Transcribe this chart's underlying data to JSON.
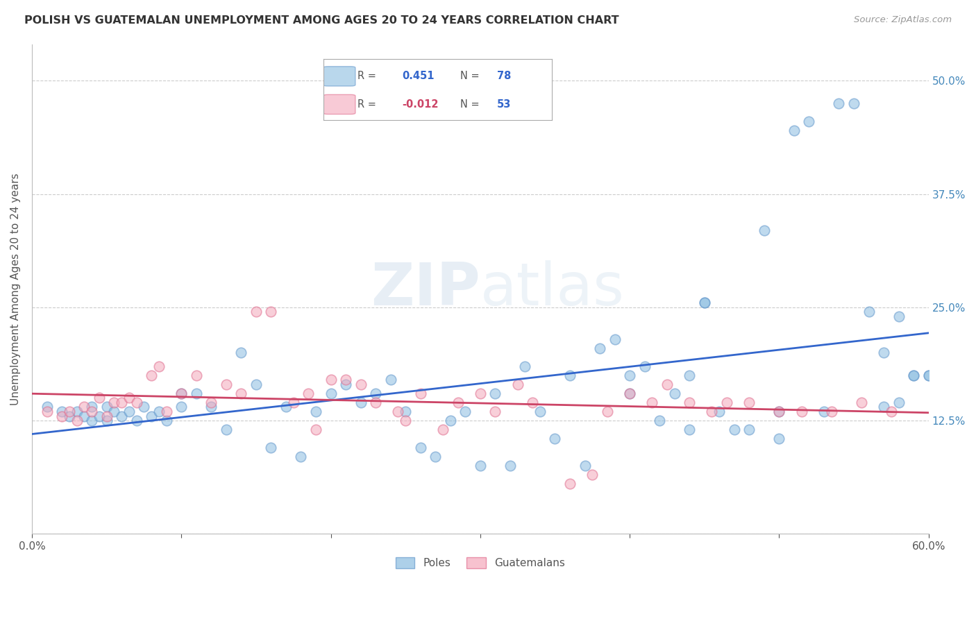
{
  "title": "POLISH VS GUATEMALAN UNEMPLOYMENT AMONG AGES 20 TO 24 YEARS CORRELATION CHART",
  "source": "Source: ZipAtlas.com",
  "ylabel": "Unemployment Among Ages 20 to 24 years",
  "xlim": [
    0.0,
    0.6
  ],
  "ylim": [
    0.0,
    0.54
  ],
  "ytick_positions": [
    0.0,
    0.125,
    0.25,
    0.375,
    0.5
  ],
  "yticklabels": [
    "",
    "12.5%",
    "25.0%",
    "37.5%",
    "50.0%"
  ],
  "grid_color": "#cccccc",
  "background_color": "#ffffff",
  "poles_color": "#8bbde0",
  "poles_edge_color": "#6699cc",
  "guatemalans_color": "#f4a8bb",
  "guatemalans_edge_color": "#e07090",
  "poles_line_color": "#3366cc",
  "guatemalans_line_color": "#cc4466",
  "poles_R": "0.451",
  "poles_N": "78",
  "guatemalans_R": "-0.012",
  "guatemalans_N": "53",
  "legend_label_poles": "Poles",
  "legend_label_guatemalans": "Guatemalans",
  "watermark": "ZIPatlas",
  "poles_x": [
    0.01,
    0.02,
    0.025,
    0.03,
    0.035,
    0.04,
    0.04,
    0.045,
    0.05,
    0.05,
    0.055,
    0.06,
    0.065,
    0.07,
    0.075,
    0.08,
    0.085,
    0.09,
    0.1,
    0.1,
    0.11,
    0.12,
    0.13,
    0.14,
    0.15,
    0.16,
    0.17,
    0.18,
    0.19,
    0.2,
    0.21,
    0.22,
    0.23,
    0.24,
    0.25,
    0.26,
    0.27,
    0.28,
    0.29,
    0.3,
    0.31,
    0.32,
    0.33,
    0.34,
    0.35,
    0.36,
    0.37,
    0.38,
    0.39,
    0.4,
    0.4,
    0.41,
    0.42,
    0.43,
    0.44,
    0.44,
    0.45,
    0.45,
    0.46,
    0.47,
    0.48,
    0.49,
    0.5,
    0.5,
    0.51,
    0.52,
    0.53,
    0.54,
    0.55,
    0.56,
    0.57,
    0.57,
    0.58,
    0.58,
    0.59,
    0.59,
    0.6,
    0.6
  ],
  "poles_y": [
    0.14,
    0.135,
    0.13,
    0.135,
    0.13,
    0.125,
    0.14,
    0.13,
    0.125,
    0.14,
    0.135,
    0.13,
    0.135,
    0.125,
    0.14,
    0.13,
    0.135,
    0.125,
    0.14,
    0.155,
    0.155,
    0.14,
    0.115,
    0.2,
    0.165,
    0.095,
    0.14,
    0.085,
    0.135,
    0.155,
    0.165,
    0.145,
    0.155,
    0.17,
    0.135,
    0.095,
    0.085,
    0.125,
    0.135,
    0.075,
    0.155,
    0.075,
    0.185,
    0.135,
    0.105,
    0.175,
    0.075,
    0.205,
    0.215,
    0.155,
    0.175,
    0.185,
    0.125,
    0.155,
    0.175,
    0.115,
    0.255,
    0.255,
    0.135,
    0.115,
    0.115,
    0.335,
    0.105,
    0.135,
    0.445,
    0.455,
    0.135,
    0.475,
    0.475,
    0.245,
    0.14,
    0.2,
    0.145,
    0.24,
    0.175,
    0.175,
    0.175,
    0.175
  ],
  "guatemalans_x": [
    0.01,
    0.02,
    0.025,
    0.03,
    0.035,
    0.04,
    0.045,
    0.05,
    0.055,
    0.06,
    0.065,
    0.07,
    0.08,
    0.085,
    0.09,
    0.1,
    0.11,
    0.12,
    0.13,
    0.14,
    0.15,
    0.16,
    0.175,
    0.185,
    0.19,
    0.2,
    0.21,
    0.22,
    0.23,
    0.245,
    0.25,
    0.26,
    0.275,
    0.285,
    0.3,
    0.31,
    0.325,
    0.335,
    0.36,
    0.375,
    0.385,
    0.4,
    0.415,
    0.425,
    0.44,
    0.455,
    0.465,
    0.48,
    0.5,
    0.515,
    0.535,
    0.555,
    0.575
  ],
  "guatemalans_y": [
    0.135,
    0.13,
    0.135,
    0.125,
    0.14,
    0.135,
    0.15,
    0.13,
    0.145,
    0.145,
    0.15,
    0.145,
    0.175,
    0.185,
    0.135,
    0.155,
    0.175,
    0.145,
    0.165,
    0.155,
    0.245,
    0.245,
    0.145,
    0.155,
    0.115,
    0.17,
    0.17,
    0.165,
    0.145,
    0.135,
    0.125,
    0.155,
    0.115,
    0.145,
    0.155,
    0.135,
    0.165,
    0.145,
    0.055,
    0.065,
    0.135,
    0.155,
    0.145,
    0.165,
    0.145,
    0.135,
    0.145,
    0.145,
    0.135,
    0.135,
    0.135,
    0.145,
    0.135
  ]
}
